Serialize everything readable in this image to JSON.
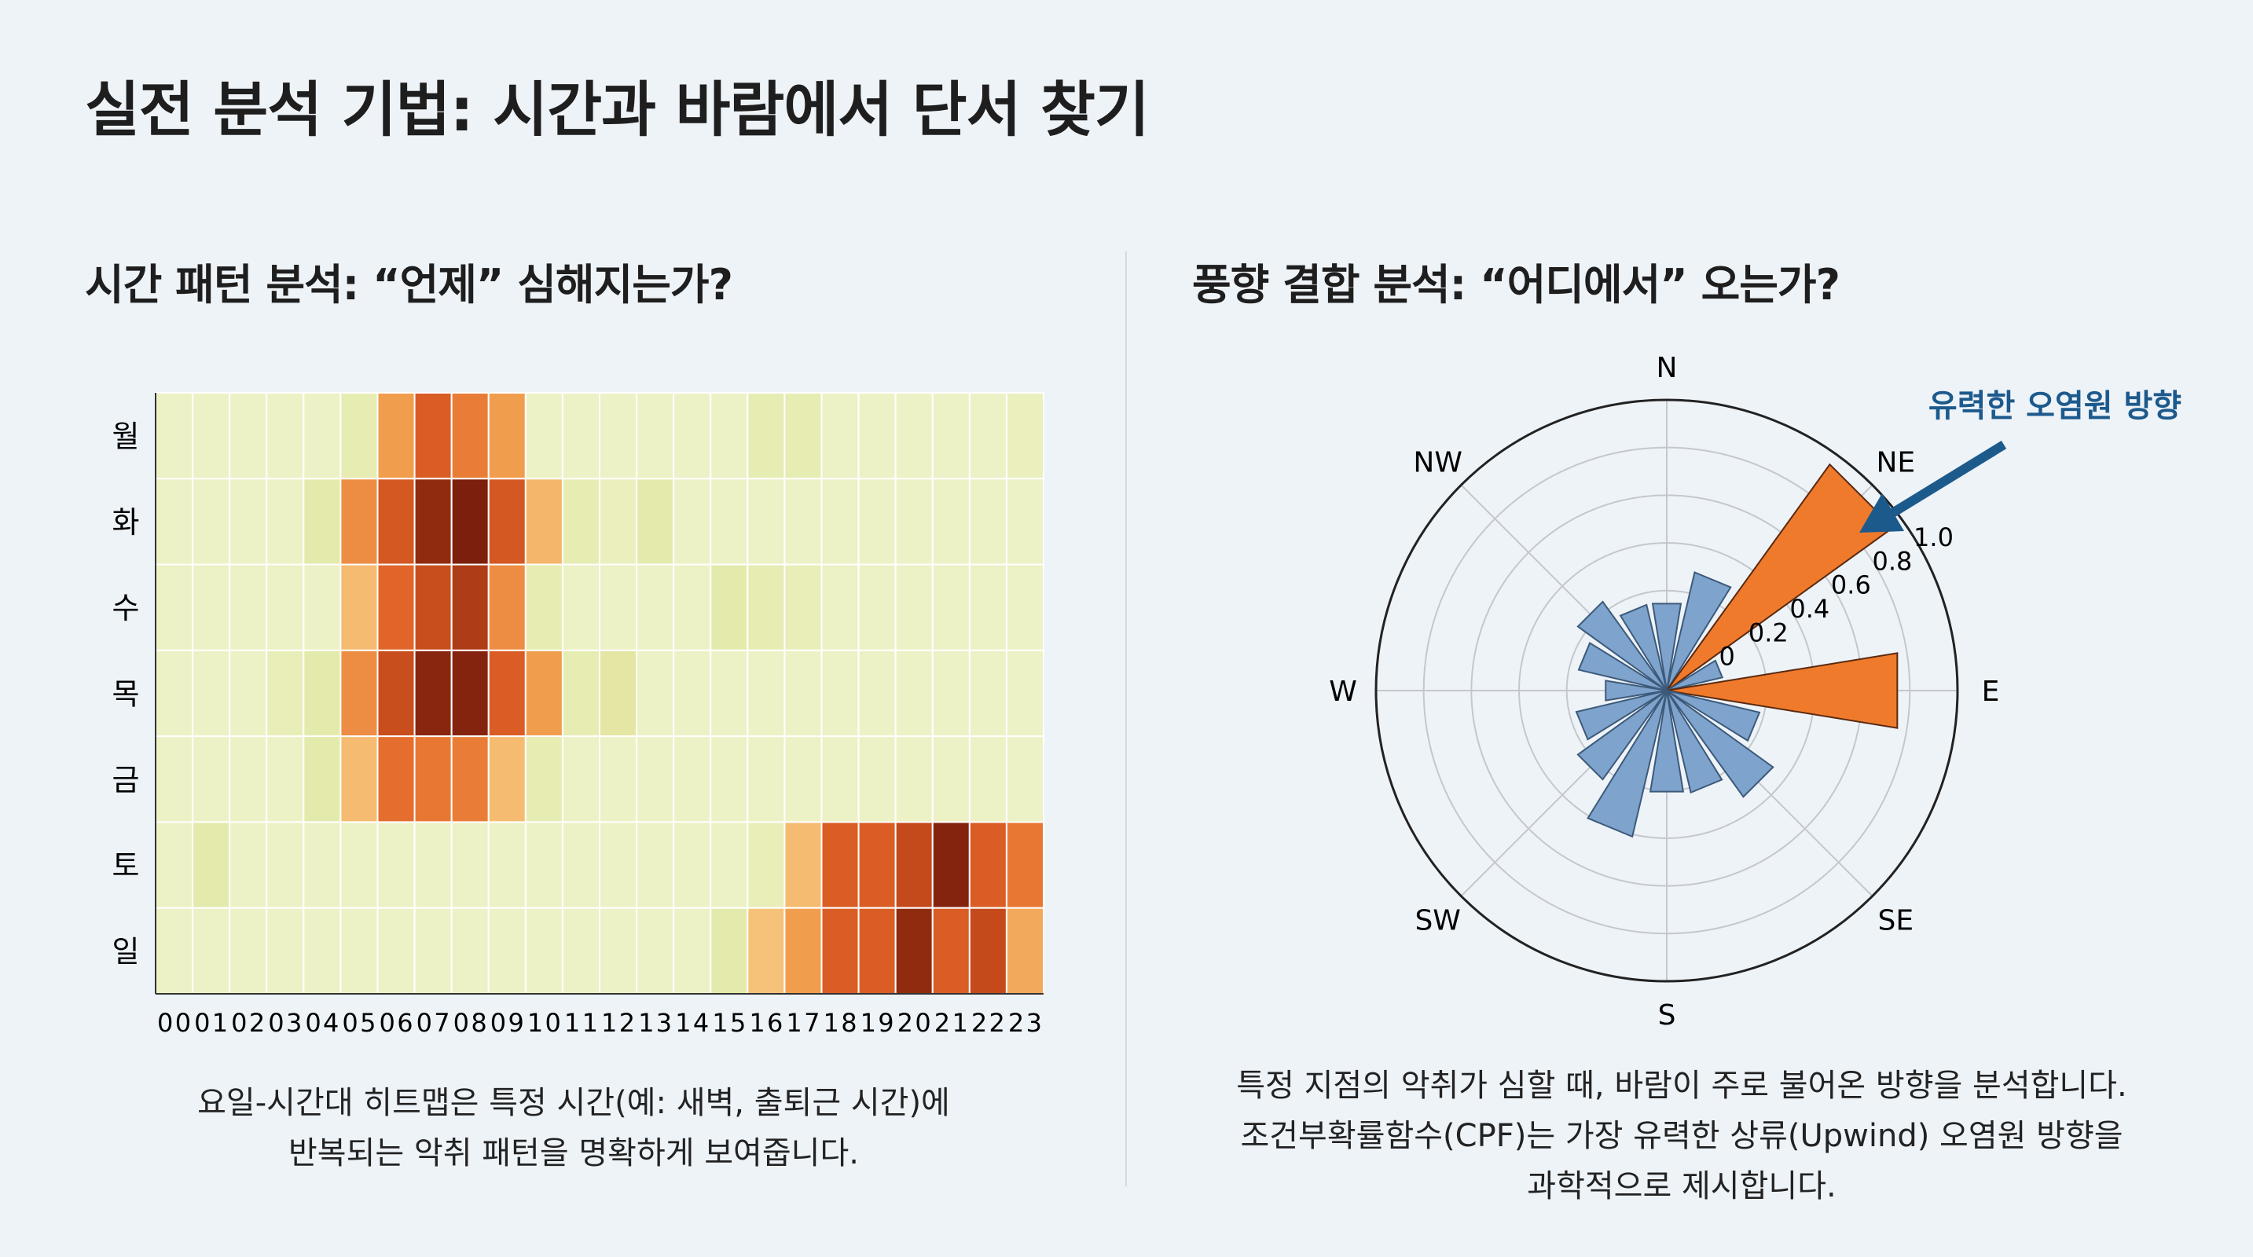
{
  "title": "실전 분석 기법: 시간과 바람에서 단서 찾기",
  "left": {
    "subtitle": "시간 패턴 분석: “언제” 심해지는가?",
    "caption": [
      "요일-시간대 히트맵은 특정 시간(예: 새벽, 출퇴근 시간)에",
      "반복되는 악취 패턴을 명확하게 보여줍니다."
    ]
  },
  "right": {
    "subtitle": "풍향 결합 분석: “어디에서” 오는가?",
    "caption": [
      "특정 지점의 악취가 심할 때, 바람이 주로 불어온 방향을 분석합니다.",
      "조건부확률함수(CPF)는 가장 유력한 상류(Upwind) 오염원 방향을",
      "과학적으로 제시합니다."
    ]
  },
  "chart_data": [
    {
      "type": "heatmap",
      "rows": [
        "월",
        "화",
        "수",
        "목",
        "금",
        "토",
        "일"
      ],
      "columns": [
        "00",
        "01",
        "02",
        "03",
        "04",
        "05",
        "06",
        "07",
        "08",
        "09",
        "10",
        "11",
        "12",
        "13",
        "14",
        "15",
        "16",
        "17",
        "18",
        "19",
        "20",
        "21",
        "22",
        "23"
      ],
      "values": [
        [
          0.05,
          0.05,
          0.05,
          0.05,
          0.05,
          0.12,
          0.5,
          0.72,
          0.6,
          0.5,
          0.05,
          0.05,
          0.05,
          0.05,
          0.05,
          0.05,
          0.12,
          0.12,
          0.05,
          0.05,
          0.05,
          0.05,
          0.05,
          0.08
        ],
        [
          0.05,
          0.05,
          0.05,
          0.05,
          0.15,
          0.55,
          0.75,
          0.95,
          1.0,
          0.75,
          0.4,
          0.12,
          0.08,
          0.15,
          0.05,
          0.05,
          0.05,
          0.05,
          0.05,
          0.05,
          0.05,
          0.05,
          0.05,
          0.05
        ],
        [
          0.05,
          0.05,
          0.05,
          0.05,
          0.05,
          0.38,
          0.68,
          0.8,
          0.88,
          0.55,
          0.12,
          0.05,
          0.05,
          0.05,
          0.05,
          0.15,
          0.12,
          0.1,
          0.05,
          0.05,
          0.05,
          0.05,
          0.05,
          0.05
        ],
        [
          0.05,
          0.05,
          0.05,
          0.1,
          0.15,
          0.55,
          0.8,
          0.97,
          0.98,
          0.72,
          0.5,
          0.12,
          0.18,
          0.05,
          0.05,
          0.05,
          0.05,
          0.05,
          0.05,
          0.05,
          0.05,
          0.05,
          0.05,
          0.05
        ],
        [
          0.05,
          0.05,
          0.05,
          0.05,
          0.15,
          0.38,
          0.65,
          0.62,
          0.6,
          0.38,
          0.12,
          0.05,
          0.05,
          0.05,
          0.05,
          0.05,
          0.05,
          0.05,
          0.05,
          0.05,
          0.05,
          0.05,
          0.05,
          0.05
        ],
        [
          0.05,
          0.15,
          0.05,
          0.05,
          0.05,
          0.05,
          0.05,
          0.05,
          0.05,
          0.05,
          0.05,
          0.05,
          0.05,
          0.05,
          0.05,
          0.05,
          0.1,
          0.38,
          0.72,
          0.72,
          0.82,
          0.98,
          0.72,
          0.62
        ],
        [
          0.05,
          0.05,
          0.05,
          0.05,
          0.05,
          0.05,
          0.05,
          0.05,
          0.05,
          0.05,
          0.05,
          0.05,
          0.05,
          0.05,
          0.05,
          0.15,
          0.35,
          0.5,
          0.72,
          0.72,
          0.95,
          0.72,
          0.82,
          0.45
        ]
      ],
      "colormap": [
        "#f1f5d3",
        "#e3e9a6",
        "#f6c67e",
        "#f19d4e",
        "#e4682a",
        "#c2471a",
        "#7c1f0c"
      ]
    },
    {
      "type": "polar-bar",
      "compass_labels": [
        "N",
        "NE",
        "E",
        "SE",
        "S",
        "SW",
        "W",
        "NW"
      ],
      "directions": [
        "N",
        "NNE",
        "NE",
        "ENE",
        "E",
        "ESE",
        "SE",
        "SSE",
        "S",
        "SSW",
        "SW",
        "WSW",
        "W",
        "WNW",
        "NW",
        "NNW"
      ],
      "values": [
        0.15,
        0.29,
        0.95,
        0.02,
        0.76,
        0.18,
        0.33,
        0.22,
        0.21,
        0.41,
        0.24,
        0.17,
        0.04,
        0.16,
        0.24,
        0.15
      ],
      "highlight": [
        "NE",
        "E"
      ],
      "radial_ticks": [
        "0",
        "0.2",
        "0.4",
        "0.6",
        "0.8",
        "1.0"
      ],
      "rlim": [
        0,
        1.0
      ],
      "annotation": "유력한 오염원 방향",
      "colors": {
        "highlight": "#f07a2c",
        "normal": "#7ea3cc",
        "annotation": "#1d5a8c"
      }
    }
  ]
}
